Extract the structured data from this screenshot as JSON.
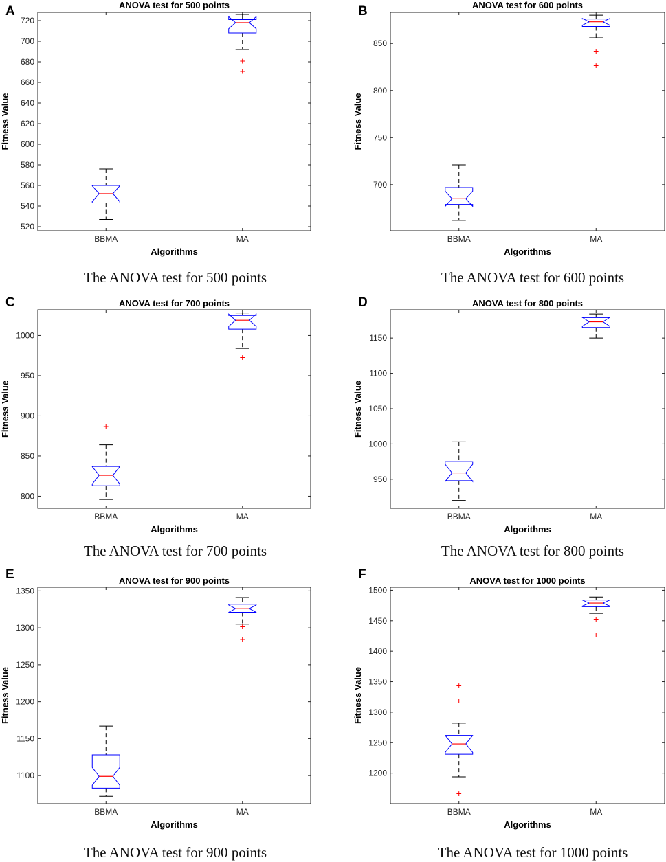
{
  "figure": {
    "colors": {
      "box": "#0000ff",
      "median": "#ff0000",
      "whisker": "#000000",
      "outlier": "#ff0000",
      "axis": "#262626"
    }
  },
  "chart_data": [
    {
      "type": "box",
      "panel": "A",
      "title": "ANOVA test for 500 points",
      "caption": "The ANOVA test for 500 points",
      "xlabel": "Algorithms",
      "ylabel": "Fitness Value",
      "categories": [
        "BBMA",
        "MA"
      ],
      "ylim": [
        516,
        728
      ],
      "yticks": [
        520,
        540,
        560,
        580,
        600,
        620,
        640,
        660,
        680,
        700,
        720
      ],
      "boxes": [
        {
          "name": "BBMA",
          "min": 527,
          "q1": 543,
          "median": 552,
          "q3": 560,
          "max": 576,
          "outliers": []
        },
        {
          "name": "MA",
          "min": 692,
          "q1": 708,
          "median": 718,
          "q3": 721,
          "max": 726,
          "outliers": [
            681,
            671
          ]
        }
      ]
    },
    {
      "type": "box",
      "panel": "B",
      "title": "ANOVA test for 600 points",
      "caption": "The ANOVA test for 600 points",
      "xlabel": "Algorithms",
      "ylabel": "Fitness Value",
      "categories": [
        "BBMA",
        "MA"
      ],
      "ylim": [
        651,
        883
      ],
      "yticks": [
        700,
        750,
        800,
        850
      ],
      "boxes": [
        {
          "name": "BBMA",
          "min": 662,
          "q1": 679,
          "median": 685,
          "q3": 697,
          "max": 721,
          "outliers": []
        },
        {
          "name": "MA",
          "min": 856,
          "q1": 868,
          "median": 873,
          "q3": 876,
          "max": 880,
          "outliers": [
            842,
            827
          ]
        }
      ]
    },
    {
      "type": "box",
      "panel": "C",
      "title": "ANOVA test for 700 points",
      "caption": "The ANOVA test for 700 points",
      "xlabel": "Algorithms",
      "ylabel": "Fitness Value",
      "categories": [
        "BBMA",
        "MA"
      ],
      "ylim": [
        785,
        1032
      ],
      "yticks": [
        800,
        850,
        900,
        950,
        1000
      ],
      "boxes": [
        {
          "name": "BBMA",
          "min": 796,
          "q1": 813,
          "median": 826,
          "q3": 837,
          "max": 864,
          "outliers": [
            887
          ]
        },
        {
          "name": "MA",
          "min": 984,
          "q1": 1008,
          "median": 1019,
          "q3": 1025,
          "max": 1028,
          "outliers": [
            973
          ]
        }
      ]
    },
    {
      "type": "box",
      "panel": "D",
      "title": "ANOVA test for 800 points",
      "caption": "The ANOVA test for 800 points",
      "xlabel": "Algorithms",
      "ylabel": "Fitness Value",
      "categories": [
        "BBMA",
        "MA"
      ],
      "ylim": [
        909,
        1190
      ],
      "yticks": [
        950,
        1000,
        1050,
        1100,
        1150
      ],
      "boxes": [
        {
          "name": "BBMA",
          "min": 920,
          "q1": 948,
          "median": 959,
          "q3": 975,
          "max": 1003,
          "outliers": []
        },
        {
          "name": "MA",
          "min": 1150,
          "q1": 1165,
          "median": 1173,
          "q3": 1179,
          "max": 1184,
          "outliers": []
        }
      ]
    },
    {
      "type": "box",
      "panel": "E",
      "title": "ANOVA test for 900 points",
      "caption": "The ANOVA test for 900 points",
      "xlabel": "Algorithms",
      "ylabel": "Fitness Value",
      "categories": [
        "BBMA",
        "MA"
      ],
      "ylim": [
        1062,
        1355
      ],
      "yticks": [
        1100,
        1150,
        1200,
        1250,
        1300,
        1350
      ],
      "boxes": [
        {
          "name": "BBMA",
          "min": 1072,
          "q1": 1083,
          "median": 1099,
          "q3": 1128,
          "max": 1167,
          "outliers": []
        },
        {
          "name": "MA",
          "min": 1305,
          "q1": 1321,
          "median": 1326,
          "q3": 1332,
          "max": 1341,
          "outliers": [
            1302,
            1285
          ]
        }
      ]
    },
    {
      "type": "box",
      "panel": "F",
      "title": "ANOVA test for 1000 points",
      "caption": "The ANOVA test for 1000 points",
      "xlabel": "Algorithms",
      "ylabel": "Fitness Value",
      "categories": [
        "BBMA",
        "MA"
      ],
      "ylim": [
        1150,
        1505
      ],
      "yticks": [
        1200,
        1250,
        1300,
        1350,
        1400,
        1450,
        1500
      ],
      "boxes": [
        {
          "name": "BBMA",
          "min": 1194,
          "q1": 1231,
          "median": 1248,
          "q3": 1262,
          "max": 1282,
          "outliers": [
            1344,
            1319,
            1167
          ]
        },
        {
          "name": "MA",
          "min": 1462,
          "q1": 1473,
          "median": 1479,
          "q3": 1484,
          "max": 1489,
          "outliers": [
            1453,
            1427
          ]
        }
      ]
    }
  ]
}
